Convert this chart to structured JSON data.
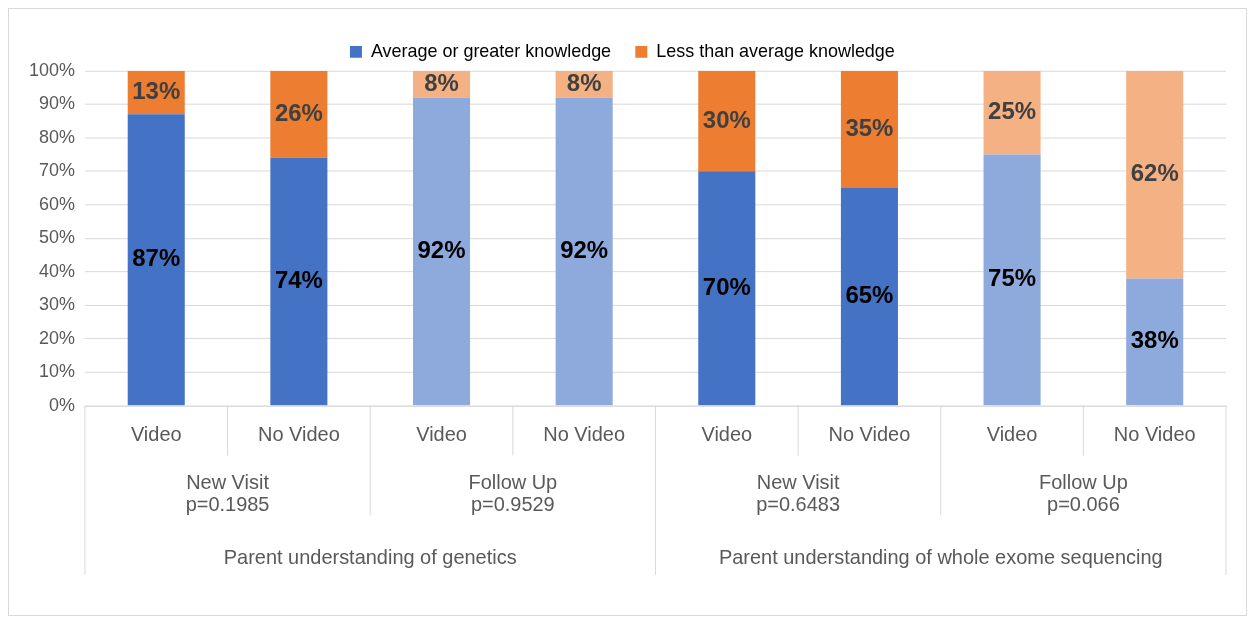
{
  "chart_data": {
    "type": "bar",
    "stacked": true,
    "categories": [
      "Video",
      "No Video",
      "Video",
      "No Video",
      "Video",
      "No Video",
      "Video",
      "No Video"
    ],
    "series": [
      {
        "name": "Average or greater knowledge",
        "color": "#4472c4",
        "colors": [
          "#4472c4",
          "#4472c4",
          "#8ea9db",
          "#8ea9db",
          "#4472c4",
          "#4472c4",
          "#8ea9db",
          "#8ea9db"
        ],
        "values": [
          87,
          74,
          92,
          92,
          70,
          65,
          75,
          38
        ],
        "value_labels": [
          "87%",
          "74%",
          "92%",
          "92%",
          "70%",
          "65%",
          "75%",
          "38%"
        ]
      },
      {
        "name": "Less than average knowledge",
        "color": "#ed7d31",
        "colors": [
          "#ed7d31",
          "#ed7d31",
          "#f4b183",
          "#f4b183",
          "#ed7d31",
          "#ed7d31",
          "#f4b183",
          "#f4b183"
        ],
        "values": [
          13,
          26,
          8,
          8,
          30,
          35,
          25,
          62
        ],
        "value_labels": [
          "13%",
          "26%",
          "8%",
          "8%",
          "30%",
          "35%",
          "25%",
          "62%"
        ]
      }
    ],
    "ylim": [
      0,
      100
    ],
    "yticks": [
      {
        "value": 0,
        "label": "0%"
      },
      {
        "value": 10,
        "label": "10%"
      },
      {
        "value": 20,
        "label": "20%"
      },
      {
        "value": 30,
        "label": "30%"
      },
      {
        "value": 40,
        "label": "40%"
      },
      {
        "value": 50,
        "label": "50%"
      },
      {
        "value": 60,
        "label": "60%"
      },
      {
        "value": 70,
        "label": "70%"
      },
      {
        "value": 80,
        "label": "80%"
      },
      {
        "value": 90,
        "label": "90%"
      },
      {
        "value": 100,
        "label": "100%"
      }
    ],
    "grid": "y",
    "legend": "top",
    "annotations": [
      "New Visit\np=0.1985",
      "Follow Up\np=0.9529",
      "New Visit\np=0.6483",
      "Follow Up\np=0.066",
      "Parent understanding of genetics",
      "Parent understanding of whole exome sequencing"
    ]
  }
}
